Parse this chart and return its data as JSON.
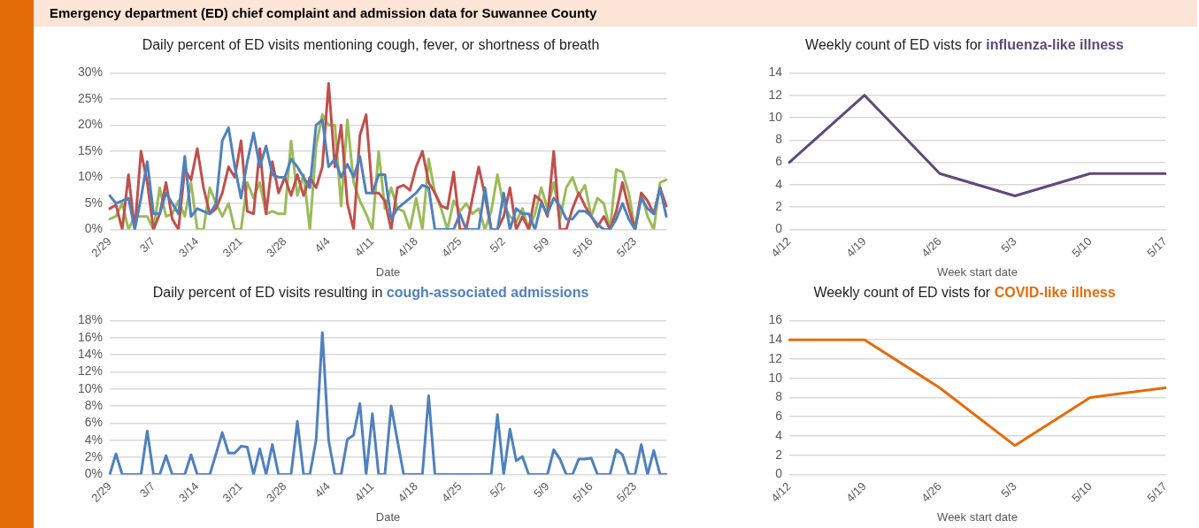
{
  "chart_data": [
    {
      "type": "line",
      "title": "Emergency department (ED) chief complaint and admission data for Suwannee County",
      "subtitle": "Daily percent of ED visits mentioning cough, fever, or shortness of breath",
      "xlabel": "Date",
      "categories": [
        "2/29",
        null,
        null,
        null,
        null,
        null,
        null,
        "3/7",
        null,
        null,
        null,
        null,
        null,
        null,
        "3/14",
        null,
        null,
        null,
        null,
        null,
        null,
        "3/21",
        null,
        null,
        null,
        null,
        null,
        null,
        "3/28",
        null,
        null,
        null,
        null,
        null,
        null,
        "4/4",
        null,
        null,
        null,
        null,
        null,
        null,
        "4/11",
        null,
        null,
        null,
        null,
        null,
        null,
        "4/18",
        null,
        null,
        null,
        null,
        null,
        null,
        "4/25",
        null,
        null,
        null,
        null,
        null,
        null,
        "5/2",
        null,
        null,
        null,
        null,
        null,
        null,
        "5/9",
        null,
        null,
        null,
        null,
        null,
        null,
        "5/16",
        null,
        null,
        null,
        null,
        null,
        null,
        "5/23",
        null,
        null,
        null,
        null,
        null
      ],
      "series": [
        {
          "color": "#4f81bd",
          "values": [
            6.5,
            5,
            5.5,
            6,
            0,
            6,
            13,
            3,
            3,
            7,
            5,
            3,
            14,
            2.5,
            4,
            3.5,
            3,
            5,
            17,
            19.5,
            12,
            6,
            13,
            18.5,
            12,
            16,
            10.5,
            10,
            10,
            13.5,
            12,
            10,
            8,
            20,
            21,
            12,
            13.5,
            10,
            12.5,
            10,
            14,
            7,
            7,
            10.5,
            10.5,
            2,
            4,
            5,
            6,
            7,
            8.5,
            8,
            0,
            0,
            0,
            0,
            3,
            0,
            0,
            0,
            8,
            0,
            0,
            7,
            0,
            4,
            3,
            3,
            0,
            5,
            3,
            6,
            4.5,
            2,
            2,
            3.5,
            3.5,
            2.5,
            1,
            0,
            0,
            2,
            5,
            2,
            0,
            6,
            4,
            3,
            8,
            2.5
          ]
        },
        {
          "color": "#c0504d",
          "values": [
            4,
            4.7,
            0,
            10.5,
            0,
            15,
            9,
            0,
            3,
            9,
            2,
            0,
            11.5,
            9.5,
            15.5,
            8,
            3,
            4,
            7,
            12,
            10,
            17,
            3.5,
            3,
            15.5,
            3,
            13,
            7,
            10,
            6.5,
            10.5,
            6.5,
            10,
            8,
            12,
            28,
            12,
            20,
            5,
            0,
            18,
            22,
            7,
            7,
            5.5,
            0,
            8,
            8.5,
            7.5,
            12,
            15,
            9,
            7,
            4.5,
            4,
            11,
            0,
            0,
            6,
            12,
            6.5,
            0,
            0,
            2.5,
            8,
            0,
            2.5,
            0,
            6.5,
            5.5,
            2.5,
            15,
            0,
            0,
            4,
            7,
            4.5,
            2.5,
            0.5,
            2.5,
            0,
            3.5,
            9,
            4,
            0,
            7,
            5.5,
            3,
            8,
            4.5
          ]
        },
        {
          "color": "#9bbb59",
          "values": [
            2,
            2.5,
            5,
            0,
            2.5,
            2.5,
            2.5,
            0,
            8,
            2.5,
            3,
            5.5,
            2.5,
            9,
            0,
            0,
            8,
            5,
            2.5,
            5,
            0,
            0,
            9,
            6,
            9,
            3,
            3.5,
            3,
            3,
            17,
            6.5,
            10.5,
            0,
            16,
            22,
            20,
            20,
            4.5,
            21,
            9,
            5.5,
            3,
            0,
            15,
            4,
            8,
            4,
            3.5,
            0,
            6,
            0,
            13.5,
            7,
            4,
            0,
            5.5,
            3.5,
            5,
            3,
            4,
            0,
            3.5,
            10.5,
            4.5,
            2.5,
            1.5,
            4,
            0,
            3,
            8,
            4,
            9,
            2,
            8,
            10,
            6.5,
            8.5,
            2.5,
            6,
            5,
            0,
            11.5,
            11,
            7,
            0,
            7,
            2.5,
            0,
            9,
            9.5
          ]
        }
      ],
      "ylim": [
        0,
        30
      ],
      "yticks": [
        {
          "value": 0,
          "label": "0%"
        },
        {
          "value": 5,
          "label": "5%"
        },
        {
          "value": 10,
          "label": "10%"
        },
        {
          "value": 15,
          "label": "15%"
        },
        {
          "value": 20,
          "label": "20%"
        },
        {
          "value": 25,
          "label": "25%"
        },
        {
          "value": 30,
          "label": "30%"
        }
      ],
      "grid": "y"
    },
    {
      "type": "line",
      "title": "Daily percent of ED visits resulting in",
      "xlabel": "Date",
      "categories": [
        "2/29",
        null,
        null,
        null,
        null,
        null,
        null,
        "3/7",
        null,
        null,
        null,
        null,
        null,
        null,
        "3/14",
        null,
        null,
        null,
        null,
        null,
        null,
        "3/21",
        null,
        null,
        null,
        null,
        null,
        null,
        "3/28",
        null,
        null,
        null,
        null,
        null,
        null,
        "4/4",
        null,
        null,
        null,
        null,
        null,
        null,
        "4/11",
        null,
        null,
        null,
        null,
        null,
        null,
        "4/18",
        null,
        null,
        null,
        null,
        null,
        null,
        "4/25",
        null,
        null,
        null,
        null,
        null,
        null,
        "5/2",
        null,
        null,
        null,
        null,
        null,
        null,
        "5/9",
        null,
        null,
        null,
        null,
        null,
        null,
        "5/16",
        null,
        null,
        null,
        null,
        null,
        null,
        "5/23",
        null,
        null,
        null,
        null,
        null
      ],
      "series": [
        {
          "name": "cough-associated admissions",
          "color": "#4f81bd",
          "values": [
            0,
            2.4,
            0,
            0,
            0,
            0,
            5.1,
            0,
            0,
            2.2,
            0,
            0,
            0,
            2.3,
            0,
            0,
            0,
            2.4,
            4.9,
            2.5,
            2.5,
            3.3,
            3.2,
            0,
            3,
            0,
            3.5,
            0,
            0,
            0,
            6.2,
            0,
            0,
            4,
            16.6,
            4,
            0,
            0,
            4.1,
            4.6,
            8.3,
            0,
            7.1,
            0,
            0,
            8,
            4,
            0,
            0,
            0,
            0,
            9.2,
            0,
            0,
            0,
            0,
            0,
            0,
            0,
            0,
            0,
            0,
            7,
            0,
            5.3,
            1.6,
            2.1,
            0,
            0,
            0,
            0,
            2.9,
            1.8,
            0,
            0,
            1.8,
            1.8,
            1.9,
            0,
            0,
            0,
            2.9,
            2.3,
            0,
            0,
            3.5,
            0,
            2.8,
            0,
            0
          ]
        }
      ],
      "ylim": [
        0,
        18
      ],
      "yticks": [
        {
          "value": 0,
          "label": "0%"
        },
        {
          "value": 2,
          "label": "2%"
        },
        {
          "value": 4,
          "label": "4%"
        },
        {
          "value": 6,
          "label": "6%"
        },
        {
          "value": 8,
          "label": "8%"
        },
        {
          "value": 10,
          "label": "10%"
        },
        {
          "value": 12,
          "label": "12%"
        },
        {
          "value": 14,
          "label": "14%"
        },
        {
          "value": 16,
          "label": "16%"
        },
        {
          "value": 18,
          "label": "18%"
        }
      ],
      "grid": "y",
      "legend": "top"
    },
    {
      "type": "line",
      "title": "Weekly count of ED vists for",
      "xlabel": "Week start date",
      "categories": [
        "4/12",
        "4/19",
        "4/26",
        "5/3",
        "5/10",
        "5/17"
      ],
      "series": [
        {
          "name": "influenza-like illness",
          "color": "#5f497a",
          "values": [
            6,
            12,
            5,
            3,
            5,
            5
          ]
        }
      ],
      "ylim": [
        0,
        14
      ],
      "yticks": [
        0,
        2,
        4,
        6,
        8,
        10,
        12,
        14
      ],
      "grid": "y",
      "legend": "top"
    },
    {
      "type": "line",
      "title": "Weekly count of ED vists for",
      "xlabel": "Week start date",
      "categories": [
        "4/12",
        "4/19",
        "4/26",
        "5/3",
        "5/10",
        "5/17"
      ],
      "series": [
        {
          "name": "COVID-like illness",
          "color": "#e46c0a",
          "values": [
            14,
            14,
            9,
            3,
            8,
            9
          ]
        }
      ],
      "ylim": [
        0,
        16
      ],
      "yticks": [
        0,
        2,
        4,
        6,
        8,
        10,
        12,
        14,
        16
      ],
      "grid": "y",
      "legend": "top"
    }
  ]
}
